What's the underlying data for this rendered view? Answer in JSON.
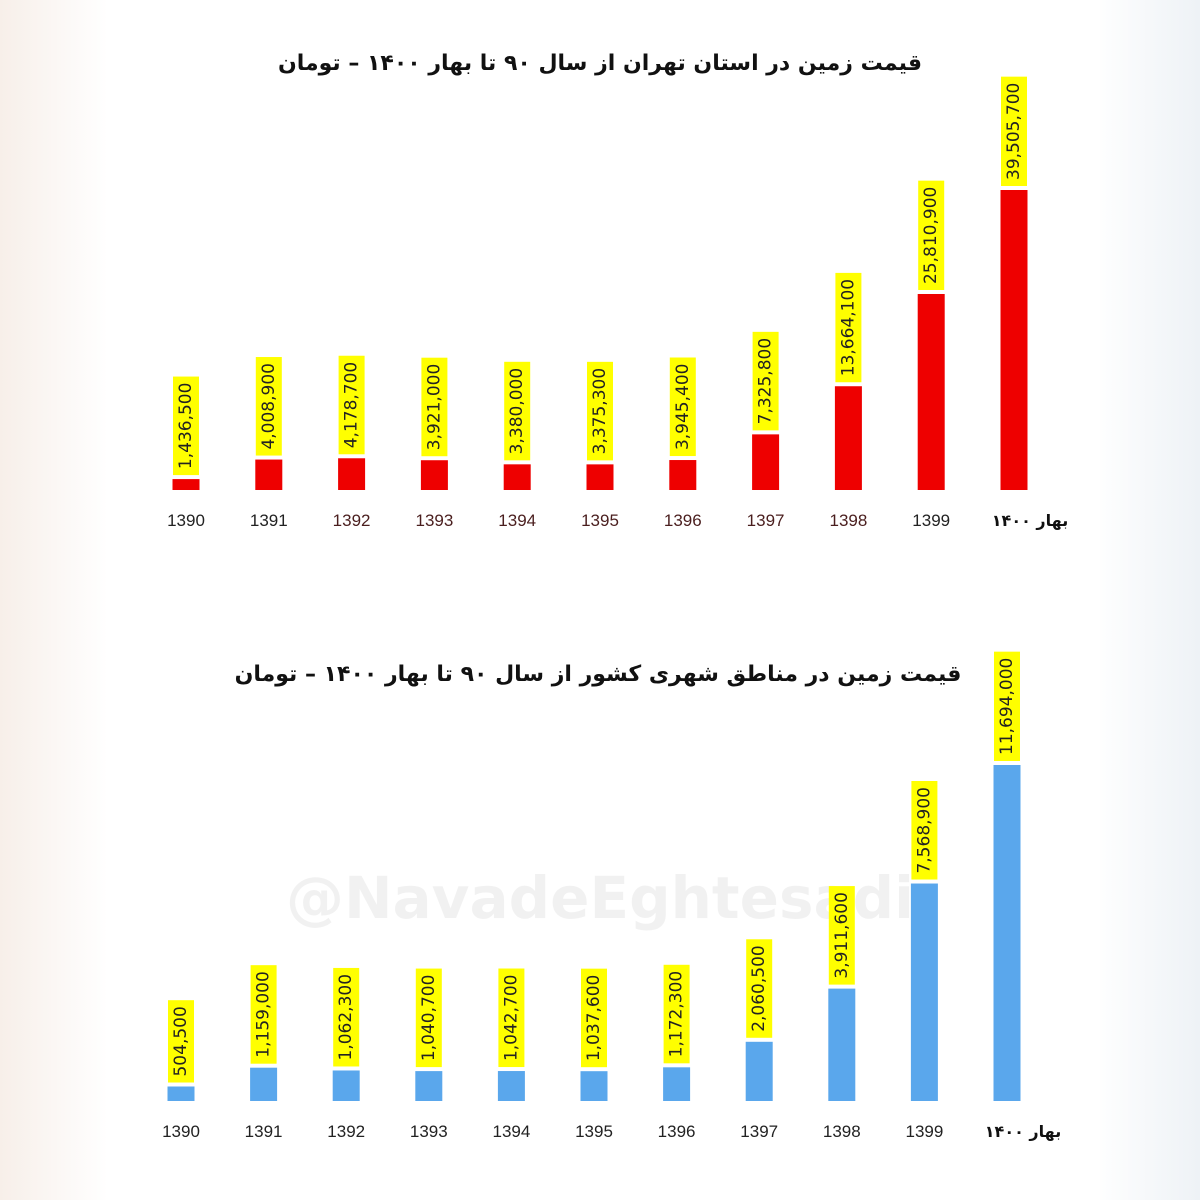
{
  "watermark": "@NavadeEghtesadi",
  "chart_data": [
    {
      "type": "bar",
      "title": "قیمت زمین در استان تهران از سال ۹۰ تا بهار ۱۴۰۰ – تومان",
      "categories": [
        "1390",
        "1391",
        "1392",
        "1393",
        "1394",
        "1395",
        "1396",
        "1397",
        "1398",
        "1399",
        "بهار ۱۴۰۰"
      ],
      "values": [
        1436500,
        4008900,
        4178700,
        3921000,
        3380000,
        3375300,
        3945400,
        7325800,
        13664100,
        25810900,
        39505700
      ],
      "value_labels": [
        "1,436,500",
        "4,008,900",
        "4,178,700",
        "3,921,000",
        "3,380,000",
        "3,375,300",
        "3,945,400",
        "7,325,800",
        "13,664,100",
        "25,810,900",
        "39,505,700"
      ],
      "bar_color": "#ee0000",
      "label_bg_color": "#ffff00",
      "ylim": [
        0,
        39505700
      ],
      "xlabel": "",
      "ylabel": "",
      "grid": false
    },
    {
      "type": "bar",
      "title": "قیمت زمین در مناطق شهری کشور از سال ۹۰ تا بهار ۱۴۰۰ – تومان",
      "categories": [
        "1390",
        "1391",
        "1392",
        "1393",
        "1394",
        "1395",
        "1396",
        "1397",
        "1398",
        "1399",
        "بهار ۱۴۰۰"
      ],
      "values": [
        504500,
        1159000,
        1062300,
        1040700,
        1042700,
        1037600,
        1172300,
        2060500,
        3911600,
        7568900,
        11694000
      ],
      "value_labels": [
        "504,500",
        "1,159,000",
        "1,062,300",
        "1,040,700",
        "1,042,700",
        "1,037,600",
        "1,172,300",
        "2,060,500",
        "3,911,600",
        "7,568,900",
        "11,694,000"
      ],
      "bar_color": "#5aa7ec",
      "label_bg_color": "#ffff00",
      "ylim": [
        0,
        11694000
      ],
      "xlabel": "",
      "ylabel": "",
      "grid": false
    }
  ]
}
